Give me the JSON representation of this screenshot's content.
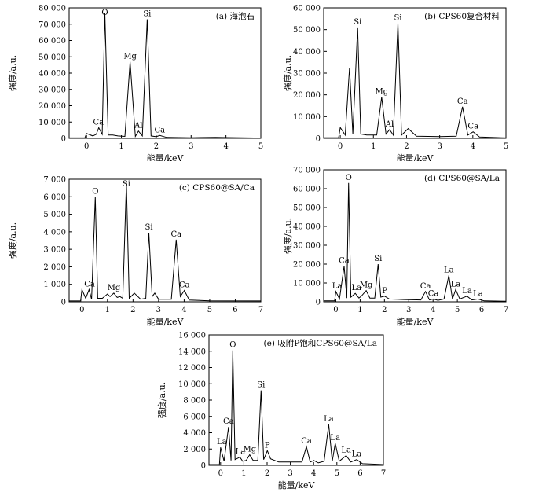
{
  "figure": {
    "ylabel": "强度/a.u.",
    "xlabel": "能量/keV"
  },
  "chart_data": [
    {
      "type": "line",
      "title": "(a) 海泡石",
      "xlabel": "能量/keV",
      "ylabel": "强度/a.u.",
      "xlim": [
        -0.5,
        5
      ],
      "ylim": [
        0,
        80000
      ],
      "xticks": [
        0,
        1,
        2,
        3,
        4,
        5
      ],
      "yticks": [
        0,
        10000,
        20000,
        30000,
        40000,
        50000,
        60000,
        70000,
        80000
      ],
      "ytick_labels": [
        "0",
        "10 000",
        "20 000",
        "30 000",
        "40 000",
        "50 000",
        "60 000",
        "70 000",
        "80 000"
      ],
      "series": [
        {
          "values": [
            [
              -0.5,
              300
            ],
            [
              -0.05,
              300
            ],
            [
              0,
              3000
            ],
            [
              0.18,
              1500
            ],
            [
              0.28,
              2500
            ],
            [
              0.35,
              6500
            ],
            [
              0.45,
              2500
            ],
            [
              0.525,
              77000
            ],
            [
              0.62,
              2000
            ],
            [
              0.75,
              2000
            ],
            [
              0.9,
              1500
            ],
            [
              1.1,
              1200
            ],
            [
              1.25,
              47000
            ],
            [
              1.4,
              1200
            ],
            [
              1.49,
              4500
            ],
            [
              1.6,
              1500
            ],
            [
              1.74,
              73000
            ],
            [
              1.85,
              1500
            ],
            [
              2.0,
              1000
            ],
            [
              2.1,
              1800
            ],
            [
              2.3,
              600
            ],
            [
              3.0,
              400
            ],
            [
              3.7,
              600
            ],
            [
              4.0,
              500
            ],
            [
              5.0,
              200
            ]
          ]
        }
      ],
      "peaks": [
        {
          "label": "Ca",
          "x": 0.34,
          "y": 6500
        },
        {
          "label": "O",
          "x": 0.525,
          "y": 77000
        },
        {
          "label": "Mg",
          "x": 1.25,
          "y": 47000
        },
        {
          "label": "Al",
          "x": 1.49,
          "y": 4500
        },
        {
          "label": "Si",
          "x": 1.74,
          "y": 73000
        },
        {
          "label": "Ca",
          "x": 2.1,
          "y": 1800
        }
      ]
    },
    {
      "type": "line",
      "title": "(b) CPS60复合材料",
      "xlabel": "能量/keV",
      "ylabel": "强度/a.u.",
      "xlim": [
        -0.5,
        5
      ],
      "ylim": [
        0,
        60000
      ],
      "xticks": [
        0,
        1,
        2,
        3,
        4,
        5
      ],
      "yticks": [
        0,
        10000,
        20000,
        30000,
        40000,
        50000,
        60000
      ],
      "ytick_labels": [
        "0",
        "10 000",
        "20 000",
        "30 000",
        "40 000",
        "50 000",
        "60 000"
      ],
      "series": [
        {
          "values": [
            [
              -0.5,
              300
            ],
            [
              -0.05,
              300
            ],
            [
              0,
              5000
            ],
            [
              0.15,
              1500
            ],
            [
              0.28,
              32500
            ],
            [
              0.38,
              2000
            ],
            [
              0.525,
              51000
            ],
            [
              0.62,
              2000
            ],
            [
              0.8,
              1500
            ],
            [
              1.1,
              1500
            ],
            [
              1.25,
              19000
            ],
            [
              1.38,
              2000
            ],
            [
              1.49,
              4000
            ],
            [
              1.6,
              1500
            ],
            [
              1.74,
              53000
            ],
            [
              1.85,
              1500
            ],
            [
              2.05,
              4500
            ],
            [
              2.3,
              1000
            ],
            [
              3.0,
              800
            ],
            [
              3.5,
              1000
            ],
            [
              3.69,
              14500
            ],
            [
              3.85,
              1500
            ],
            [
              4.01,
              3000
            ],
            [
              4.2,
              600
            ],
            [
              5.0,
              200
            ]
          ]
        }
      ],
      "peaks": [
        {
          "label": "Si",
          "x": 0.525,
          "y": 51000
        },
        {
          "label": "Mg",
          "x": 1.25,
          "y": 19000
        },
        {
          "label": "Al",
          "x": 1.49,
          "y": 4000
        },
        {
          "label": "Si",
          "x": 1.74,
          "y": 53000
        },
        {
          "label": "Ca",
          "x": 3.69,
          "y": 14500
        },
        {
          "label": "Ca",
          "x": 4.01,
          "y": 3000
        }
      ]
    },
    {
      "type": "line",
      "title": "(c) CPS60@SA/Ca",
      "xlabel": "能量/keV",
      "ylabel": "强度/a.u.",
      "xlim": [
        -0.5,
        7
      ],
      "ylim": [
        0,
        7000
      ],
      "xticks": [
        0,
        1,
        2,
        3,
        4,
        5,
        6,
        7
      ],
      "yticks": [
        0,
        1000,
        2000,
        3000,
        4000,
        5000,
        6000,
        7000
      ],
      "ytick_labels": [
        "0",
        "1 000",
        "2 000",
        "3 000",
        "4 000",
        "5 000",
        "6 000",
        "7 000"
      ],
      "series": [
        {
          "values": [
            [
              -0.5,
              50
            ],
            [
              -0.05,
              50
            ],
            [
              0,
              700
            ],
            [
              0.15,
              200
            ],
            [
              0.28,
              700
            ],
            [
              0.38,
              150
            ],
            [
              0.525,
              6000
            ],
            [
              0.62,
              200
            ],
            [
              0.8,
              200
            ],
            [
              1.0,
              450
            ],
            [
              1.1,
              300
            ],
            [
              1.25,
              500
            ],
            [
              1.38,
              250
            ],
            [
              1.49,
              300
            ],
            [
              1.6,
              200
            ],
            [
              1.74,
              6800
            ],
            [
              1.85,
              200
            ],
            [
              2.05,
              500
            ],
            [
              2.3,
              150
            ],
            [
              2.5,
              200
            ],
            [
              2.62,
              3950
            ],
            [
              2.75,
              300
            ],
            [
              2.85,
              500
            ],
            [
              3.0,
              150
            ],
            [
              3.5,
              150
            ],
            [
              3.69,
              3550
            ],
            [
              3.85,
              300
            ],
            [
              4.01,
              650
            ],
            [
              4.2,
              100
            ],
            [
              5.0,
              60
            ],
            [
              7.0,
              50
            ]
          ]
        }
      ],
      "peaks": [
        {
          "label": "Ca",
          "x": 0.3,
          "y": 700
        },
        {
          "label": "O",
          "x": 0.525,
          "y": 6000
        },
        {
          "label": "Mg",
          "x": 1.25,
          "y": 500
        },
        {
          "label": "Si",
          "x": 1.74,
          "y": 6800
        },
        {
          "label": "Si",
          "x": 2.62,
          "y": 3950
        },
        {
          "label": "Ca",
          "x": 3.69,
          "y": 3550
        },
        {
          "label": "Ca",
          "x": 4.01,
          "y": 650
        }
      ]
    },
    {
      "type": "line",
      "title": "(d) CPS60@SA/La",
      "xlabel": "能量/keV",
      "ylabel": "强度/a.u.",
      "xlim": [
        -0.5,
        7
      ],
      "ylim": [
        0,
        70000
      ],
      "xticks": [
        0,
        1,
        2,
        3,
        4,
        5,
        6,
        7
      ],
      "yticks": [
        0,
        10000,
        20000,
        30000,
        40000,
        50000,
        60000,
        70000
      ],
      "ytick_labels": [
        "0",
        "10 000",
        "20 000",
        "30 000",
        "40 000",
        "50 000",
        "60 000",
        "70 000"
      ],
      "series": [
        {
          "values": [
            [
              -0.5,
              500
            ],
            [
              -0.05,
              500
            ],
            [
              0,
              5500
            ],
            [
              0.15,
              1500
            ],
            [
              0.34,
              19000
            ],
            [
              0.45,
              2000
            ],
            [
              0.525,
              63000
            ],
            [
              0.62,
              2500
            ],
            [
              0.8,
              4500
            ],
            [
              0.95,
              2000
            ],
            [
              1.05,
              3000
            ],
            [
              1.25,
              6000
            ],
            [
              1.4,
              2000
            ],
            [
              1.6,
              2000
            ],
            [
              1.74,
              20000
            ],
            [
              1.85,
              2500
            ],
            [
              2.01,
              3000
            ],
            [
              2.2,
              1500
            ],
            [
              2.8,
              1200
            ],
            [
              3.5,
              1000
            ],
            [
              3.69,
              5500
            ],
            [
              3.85,
              1000
            ],
            [
              4.01,
              1500
            ],
            [
              4.2,
              800
            ],
            [
              4.45,
              1500
            ],
            [
              4.65,
              14000
            ],
            [
              4.8,
              1500
            ],
            [
              4.93,
              6500
            ],
            [
              5.1,
              1500
            ],
            [
              5.4,
              3000
            ],
            [
              5.6,
              1000
            ],
            [
              5.85,
              1500
            ],
            [
              6.1,
              500
            ],
            [
              7.0,
              300
            ]
          ]
        }
      ],
      "peaks": [
        {
          "label": "La",
          "x": 0.05,
          "y": 5500
        },
        {
          "label": "Ca",
          "x": 0.34,
          "y": 19000
        },
        {
          "label": "O",
          "x": 0.525,
          "y": 63000
        },
        {
          "label": "La",
          "x": 0.85,
          "y": 4500
        },
        {
          "label": "Mg",
          "x": 1.25,
          "y": 6000
        },
        {
          "label": "Si",
          "x": 1.74,
          "y": 20000
        },
        {
          "label": "P",
          "x": 2.01,
          "y": 3000
        },
        {
          "label": "Ca",
          "x": 3.69,
          "y": 5500
        },
        {
          "label": "Ca",
          "x": 4.01,
          "y": 1500
        },
        {
          "label": "La",
          "x": 4.65,
          "y": 14000
        },
        {
          "label": "La",
          "x": 4.93,
          "y": 6500
        },
        {
          "label": "La",
          "x": 5.4,
          "y": 3000
        },
        {
          "label": "La",
          "x": 5.85,
          "y": 1500
        }
      ]
    },
    {
      "type": "line",
      "title": "(e) 吸附P饱和CPS60@SA/La",
      "xlabel": "能量/keV",
      "ylabel": "强度/a.u.",
      "xlim": [
        -0.5,
        7
      ],
      "ylim": [
        0,
        16000
      ],
      "xticks": [
        0,
        1,
        2,
        3,
        4,
        5,
        6,
        7
      ],
      "yticks": [
        0,
        2000,
        4000,
        6000,
        8000,
        10000,
        12000,
        14000,
        16000
      ],
      "ytick_labels": [
        "0",
        "2 000",
        "4 000",
        "6 000",
        "8 000",
        "10 000",
        "12 000",
        "14 000",
        "16 000"
      ],
      "series": [
        {
          "values": [
            [
              -0.5,
              100
            ],
            [
              -0.05,
              100
            ],
            [
              0,
              2200
            ],
            [
              0.15,
              500
            ],
            [
              0.34,
              4700
            ],
            [
              0.45,
              600
            ],
            [
              0.525,
              14100
            ],
            [
              0.62,
              700
            ],
            [
              0.83,
              1000
            ],
            [
              0.95,
              500
            ],
            [
              1.1,
              600
            ],
            [
              1.25,
              1300
            ],
            [
              1.4,
              600
            ],
            [
              1.6,
              600
            ],
            [
              1.74,
              9200
            ],
            [
              1.85,
              700
            ],
            [
              2.01,
              1800
            ],
            [
              2.15,
              800
            ],
            [
              2.5,
              400
            ],
            [
              3.5,
              400
            ],
            [
              3.69,
              2300
            ],
            [
              3.85,
              400
            ],
            [
              4.01,
              600
            ],
            [
              4.2,
              300
            ],
            [
              4.45,
              500
            ],
            [
              4.65,
              5000
            ],
            [
              4.8,
              500
            ],
            [
              4.93,
              2700
            ],
            [
              5.1,
              500
            ],
            [
              5.4,
              1200
            ],
            [
              5.6,
              400
            ],
            [
              5.85,
              700
            ],
            [
              6.1,
              200
            ],
            [
              7.0,
              100
            ]
          ]
        }
      ],
      "peaks": [
        {
          "label": "La",
          "x": 0.05,
          "y": 2200
        },
        {
          "label": "Ca",
          "x": 0.34,
          "y": 4700
        },
        {
          "label": "O",
          "x": 0.525,
          "y": 14100
        },
        {
          "label": "La",
          "x": 0.85,
          "y": 1000
        },
        {
          "label": "Mg",
          "x": 1.25,
          "y": 1300
        },
        {
          "label": "Si",
          "x": 1.74,
          "y": 9200
        },
        {
          "label": "P",
          "x": 2.01,
          "y": 1800
        },
        {
          "label": "Ca",
          "x": 3.69,
          "y": 2300
        },
        {
          "label": "La",
          "x": 4.65,
          "y": 5000
        },
        {
          "label": "La",
          "x": 4.93,
          "y": 2700
        },
        {
          "label": "La",
          "x": 5.4,
          "y": 1200
        },
        {
          "label": "La",
          "x": 5.85,
          "y": 700
        }
      ]
    }
  ]
}
